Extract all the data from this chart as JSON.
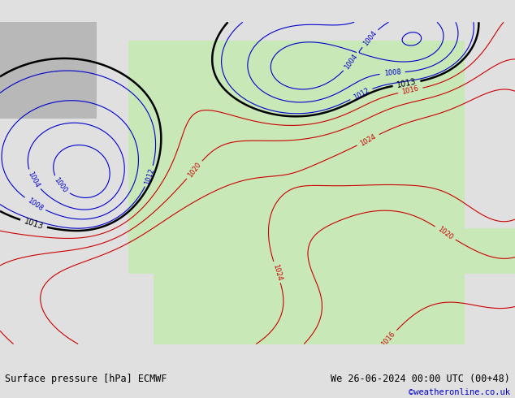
{
  "title_left": "Surface pressure [hPa] ECMWF",
  "title_right": "We 26-06-2024 00:00 UTC (00+48)",
  "credit": "©weatheronline.co.uk",
  "bg_ocean": "#e0e0e0",
  "bg_land_europe": "#c8e8b8",
  "bg_land_gray": "#b8b8b8",
  "contour_blue": "#0000cc",
  "contour_red": "#cc0000",
  "contour_black": "#000000",
  "bottom_bar_color": "#d0d0d0",
  "figsize": [
    6.34,
    4.9
  ],
  "dpi": 100
}
